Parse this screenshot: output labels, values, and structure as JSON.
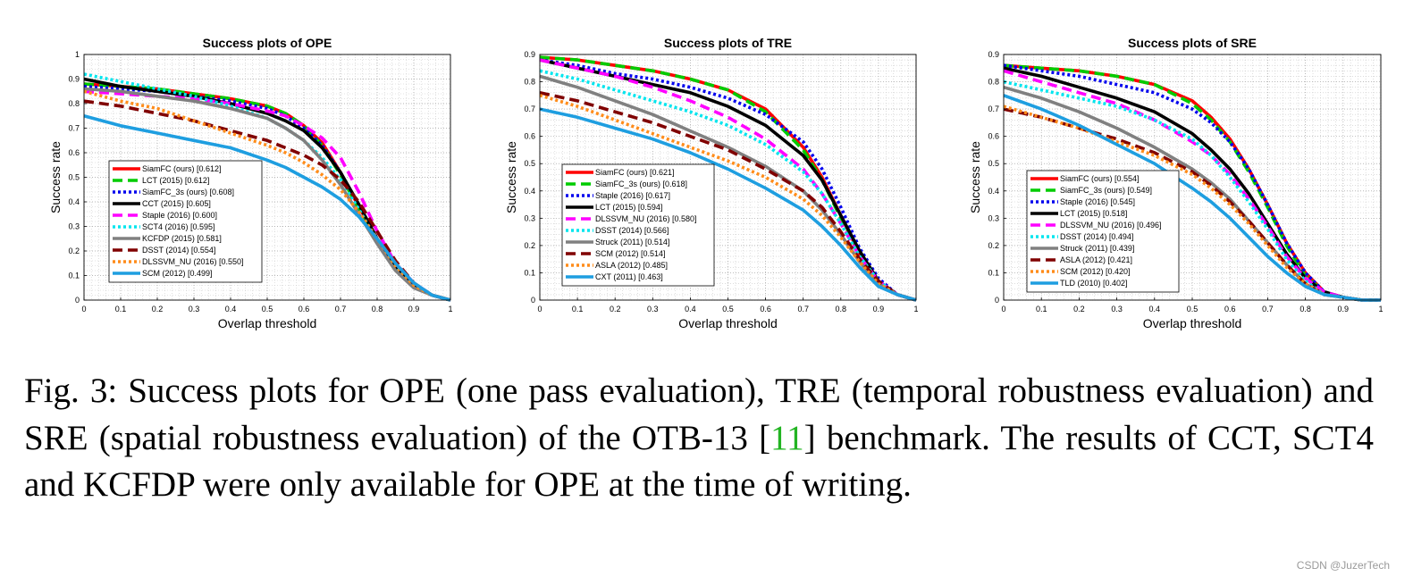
{
  "chart_data": [
    {
      "type": "line",
      "title": "Success plots of OPE",
      "xlabel": "Overlap threshold",
      "ylabel": "Success rate",
      "xlim": [
        0,
        1
      ],
      "ylim": [
        0,
        1
      ],
      "xticks": [
        "0",
        "0.1",
        "0.2",
        "0.3",
        "0.4",
        "0.5",
        "0.6",
        "0.7",
        "0.8",
        "0.9",
        "1"
      ],
      "yticks": [
        "0",
        "0.1",
        "0.2",
        "0.3",
        "0.4",
        "0.5",
        "0.6",
        "0.7",
        "0.8",
        "0.9",
        "1"
      ],
      "grid": true,
      "legend_position": "lower-left",
      "x": [
        0,
        0.1,
        0.2,
        0.3,
        0.4,
        0.5,
        0.55,
        0.6,
        0.65,
        0.7,
        0.75,
        0.8,
        0.85,
        0.9,
        0.95,
        1
      ],
      "series": [
        {
          "name": "SiamFC (ours) [0.612]",
          "color": "#ff0000",
          "style": "solid",
          "values": [
            0.88,
            0.87,
            0.86,
            0.84,
            0.82,
            0.79,
            0.76,
            0.71,
            0.64,
            0.52,
            0.38,
            0.25,
            0.13,
            0.06,
            0.02,
            0
          ]
        },
        {
          "name": "LCT (2015) [0.612]",
          "color": "#00cc00",
          "style": "dashed",
          "values": [
            0.88,
            0.87,
            0.86,
            0.84,
            0.82,
            0.79,
            0.76,
            0.71,
            0.63,
            0.51,
            0.37,
            0.24,
            0.13,
            0.06,
            0.02,
            0
          ]
        },
        {
          "name": "SiamFC_3s (ours) [0.608]",
          "color": "#0000ee",
          "style": "dotted",
          "values": [
            0.87,
            0.86,
            0.85,
            0.83,
            0.81,
            0.78,
            0.75,
            0.7,
            0.63,
            0.52,
            0.38,
            0.25,
            0.13,
            0.06,
            0.02,
            0
          ]
        },
        {
          "name": "CCT (2015) [0.605]",
          "color": "#000000",
          "style": "solid",
          "values": [
            0.9,
            0.87,
            0.85,
            0.83,
            0.8,
            0.76,
            0.73,
            0.69,
            0.62,
            0.52,
            0.39,
            0.25,
            0.13,
            0.06,
            0.02,
            0
          ]
        },
        {
          "name": "Staple (2016) [0.600]",
          "color": "#ff00ff",
          "style": "dashed",
          "values": [
            0.85,
            0.84,
            0.83,
            0.82,
            0.8,
            0.77,
            0.75,
            0.71,
            0.66,
            0.58,
            0.44,
            0.28,
            0.15,
            0.07,
            0.02,
            0
          ]
        },
        {
          "name": "SCT4 (2016) [0.595]",
          "color": "#00e5ee",
          "style": "dotted",
          "values": [
            0.92,
            0.89,
            0.86,
            0.83,
            0.79,
            0.74,
            0.7,
            0.65,
            0.58,
            0.49,
            0.37,
            0.24,
            0.13,
            0.06,
            0.02,
            0
          ]
        },
        {
          "name": "KCFDP (2015) [0.581]",
          "color": "#808080",
          "style": "solid",
          "values": [
            0.86,
            0.85,
            0.83,
            0.81,
            0.78,
            0.74,
            0.7,
            0.65,
            0.57,
            0.47,
            0.35,
            0.23,
            0.12,
            0.05,
            0.02,
            0
          ]
        },
        {
          "name": "DSST (2014) [0.554]",
          "color": "#800000",
          "style": "dashed",
          "values": [
            0.81,
            0.79,
            0.76,
            0.73,
            0.69,
            0.65,
            0.62,
            0.59,
            0.55,
            0.49,
            0.4,
            0.28,
            0.16,
            0.07,
            0.02,
            0
          ]
        },
        {
          "name": "DLSSVM_NU (2016) [0.550]",
          "color": "#ff8c1a",
          "style": "dotted",
          "values": [
            0.85,
            0.81,
            0.78,
            0.73,
            0.68,
            0.63,
            0.6,
            0.56,
            0.51,
            0.45,
            0.36,
            0.25,
            0.14,
            0.06,
            0.02,
            0
          ]
        },
        {
          "name": "SCM (2012) [0.499]",
          "color": "#1e9ee0",
          "style": "solid",
          "values": [
            0.75,
            0.71,
            0.68,
            0.65,
            0.62,
            0.57,
            0.54,
            0.5,
            0.46,
            0.41,
            0.34,
            0.25,
            0.15,
            0.07,
            0.02,
            0
          ]
        }
      ]
    },
    {
      "type": "line",
      "title": "Success plots of TRE",
      "xlabel": "Overlap threshold",
      "ylabel": "Success rate",
      "xlim": [
        0,
        1
      ],
      "ylim": [
        0,
        0.9
      ],
      "xticks": [
        "0",
        "0.1",
        "0.2",
        "0.3",
        "0.4",
        "0.5",
        "0.6",
        "0.7",
        "0.8",
        "0.9",
        "1"
      ],
      "yticks": [
        "0",
        "0.1",
        "0.2",
        "0.3",
        "0.4",
        "0.5",
        "0.6",
        "0.7",
        "0.8",
        "0.9"
      ],
      "grid": true,
      "legend_position": "lower-left",
      "x": [
        0,
        0.1,
        0.2,
        0.3,
        0.4,
        0.5,
        0.6,
        0.7,
        0.75,
        0.8,
        0.85,
        0.9,
        0.95,
        1
      ],
      "series": [
        {
          "name": "SiamFC (ours) [0.621]",
          "color": "#ff0000",
          "style": "solid",
          "values": [
            0.89,
            0.88,
            0.86,
            0.84,
            0.81,
            0.77,
            0.7,
            0.56,
            0.45,
            0.31,
            0.17,
            0.07,
            0.02,
            0
          ]
        },
        {
          "name": "SiamFC_3s (ours) [0.618]",
          "color": "#00cc00",
          "style": "dashed",
          "values": [
            0.89,
            0.88,
            0.86,
            0.84,
            0.81,
            0.77,
            0.69,
            0.55,
            0.44,
            0.3,
            0.17,
            0.07,
            0.02,
            0
          ]
        },
        {
          "name": "Staple (2016) [0.617]",
          "color": "#0000ee",
          "style": "dotted",
          "values": [
            0.88,
            0.86,
            0.83,
            0.81,
            0.78,
            0.74,
            0.68,
            0.58,
            0.48,
            0.34,
            0.19,
            0.08,
            0.02,
            0
          ]
        },
        {
          "name": "LCT (2015) [0.594]",
          "color": "#000000",
          "style": "solid",
          "values": [
            0.88,
            0.85,
            0.82,
            0.79,
            0.76,
            0.71,
            0.64,
            0.53,
            0.44,
            0.31,
            0.18,
            0.07,
            0.02,
            0
          ]
        },
        {
          "name": "DLSSVM_NU (2016) [0.580]",
          "color": "#ff00ff",
          "style": "dashed",
          "values": [
            0.88,
            0.85,
            0.82,
            0.78,
            0.73,
            0.67,
            0.59,
            0.48,
            0.39,
            0.28,
            0.16,
            0.07,
            0.02,
            0
          ]
        },
        {
          "name": "DSST (2014) [0.566]",
          "color": "#00e5ee",
          "style": "dotted",
          "values": [
            0.84,
            0.81,
            0.77,
            0.73,
            0.69,
            0.64,
            0.57,
            0.47,
            0.39,
            0.28,
            0.16,
            0.07,
            0.02,
            0
          ]
        },
        {
          "name": "Struck (2011) [0.514]",
          "color": "#808080",
          "style": "solid",
          "values": [
            0.82,
            0.78,
            0.73,
            0.68,
            0.62,
            0.56,
            0.49,
            0.4,
            0.33,
            0.24,
            0.14,
            0.06,
            0.02,
            0
          ]
        },
        {
          "name": "SCM (2012) [0.514]",
          "color": "#800000",
          "style": "dashed",
          "values": [
            0.76,
            0.73,
            0.69,
            0.65,
            0.6,
            0.55,
            0.48,
            0.4,
            0.34,
            0.25,
            0.15,
            0.07,
            0.02,
            0
          ]
        },
        {
          "name": "ASLA (2012) [0.485]",
          "color": "#ff8c1a",
          "style": "dotted",
          "values": [
            0.75,
            0.71,
            0.66,
            0.61,
            0.56,
            0.51,
            0.45,
            0.37,
            0.31,
            0.23,
            0.14,
            0.06,
            0.02,
            0
          ]
        },
        {
          "name": "CXT (2011) [0.463]",
          "color": "#1e9ee0",
          "style": "solid",
          "values": [
            0.7,
            0.67,
            0.63,
            0.59,
            0.54,
            0.48,
            0.41,
            0.33,
            0.27,
            0.2,
            0.12,
            0.05,
            0.02,
            0
          ]
        }
      ]
    },
    {
      "type": "line",
      "title": "Success plots of SRE",
      "xlabel": "Overlap threshold",
      "ylabel": "Success rate",
      "xlim": [
        0,
        1
      ],
      "ylim": [
        0,
        0.9
      ],
      "xticks": [
        "0",
        "0.1",
        "0.2",
        "0.3",
        "0.4",
        "0.5",
        "0.6",
        "0.7",
        "0.8",
        "0.9",
        "1"
      ],
      "yticks": [
        "0",
        "0.1",
        "0.2",
        "0.3",
        "0.4",
        "0.5",
        "0.6",
        "0.7",
        "0.8",
        "0.9"
      ],
      "grid": true,
      "legend_position": "lower-left",
      "x": [
        0,
        0.1,
        0.2,
        0.3,
        0.4,
        0.5,
        0.55,
        0.6,
        0.65,
        0.7,
        0.75,
        0.8,
        0.85,
        0.9,
        0.95,
        1
      ],
      "series": [
        {
          "name": "SiamFC (ours) [0.554]",
          "color": "#ff0000",
          "style": "solid",
          "values": [
            0.86,
            0.85,
            0.84,
            0.82,
            0.79,
            0.73,
            0.67,
            0.59,
            0.48,
            0.35,
            0.21,
            0.1,
            0.03,
            0.01,
            0,
            0
          ]
        },
        {
          "name": "SiamFC_3s (ours) [0.549]",
          "color": "#00cc00",
          "style": "dashed",
          "values": [
            0.86,
            0.85,
            0.84,
            0.82,
            0.79,
            0.72,
            0.66,
            0.58,
            0.47,
            0.34,
            0.2,
            0.09,
            0.03,
            0.01,
            0,
            0
          ]
        },
        {
          "name": "Staple (2016) [0.545]",
          "color": "#0000ee",
          "style": "dotted",
          "values": [
            0.86,
            0.84,
            0.82,
            0.79,
            0.76,
            0.7,
            0.65,
            0.58,
            0.48,
            0.35,
            0.21,
            0.1,
            0.03,
            0.01,
            0,
            0
          ]
        },
        {
          "name": "LCT (2015) [0.518]",
          "color": "#000000",
          "style": "solid",
          "values": [
            0.85,
            0.82,
            0.78,
            0.74,
            0.69,
            0.61,
            0.55,
            0.48,
            0.39,
            0.28,
            0.17,
            0.08,
            0.03,
            0.01,
            0,
            0
          ]
        },
        {
          "name": "DLSSVM_NU (2016) [0.496]",
          "color": "#ff00ff",
          "style": "dashed",
          "values": [
            0.84,
            0.8,
            0.76,
            0.72,
            0.66,
            0.58,
            0.53,
            0.46,
            0.37,
            0.27,
            0.16,
            0.08,
            0.03,
            0.01,
            0,
            0
          ]
        },
        {
          "name": "DSST (2014) [0.494]",
          "color": "#00e5ee",
          "style": "dotted",
          "values": [
            0.8,
            0.77,
            0.74,
            0.71,
            0.66,
            0.59,
            0.53,
            0.45,
            0.36,
            0.26,
            0.15,
            0.07,
            0.02,
            0.01,
            0,
            0
          ]
        },
        {
          "name": "Struck (2011) [0.439]",
          "color": "#808080",
          "style": "solid",
          "values": [
            0.78,
            0.74,
            0.69,
            0.63,
            0.56,
            0.48,
            0.43,
            0.37,
            0.29,
            0.21,
            0.13,
            0.06,
            0.02,
            0.01,
            0,
            0
          ]
        },
        {
          "name": "ASLA (2012) [0.421]",
          "color": "#800000",
          "style": "dashed",
          "values": [
            0.7,
            0.67,
            0.63,
            0.59,
            0.54,
            0.47,
            0.42,
            0.36,
            0.29,
            0.21,
            0.13,
            0.06,
            0.02,
            0.01,
            0,
            0
          ]
        },
        {
          "name": "SCM (2012) [0.420]",
          "color": "#ff8c1a",
          "style": "dotted",
          "values": [
            0.71,
            0.67,
            0.63,
            0.58,
            0.53,
            0.46,
            0.41,
            0.35,
            0.28,
            0.2,
            0.12,
            0.06,
            0.02,
            0.01,
            0,
            0
          ]
        },
        {
          "name": "TLD (2010) [0.402]",
          "color": "#1e9ee0",
          "style": "solid",
          "values": [
            0.75,
            0.7,
            0.64,
            0.57,
            0.5,
            0.41,
            0.36,
            0.3,
            0.23,
            0.16,
            0.1,
            0.05,
            0.02,
            0.01,
            0,
            0
          ]
        }
      ]
    }
  ],
  "caption": {
    "prefix": "Fig. 3: Success plots for OPE (one pass evaluation), TRE (temporal robustness evaluation) and SRE (spatial robustness evaluation) of the OTB-13 [",
    "ref": "11",
    "suffix": "] benchmark. The results of CCT, SCT4 and KCFDP were only available for OPE at the time of writing."
  },
  "watermark": "CSDN @JuzerTech"
}
